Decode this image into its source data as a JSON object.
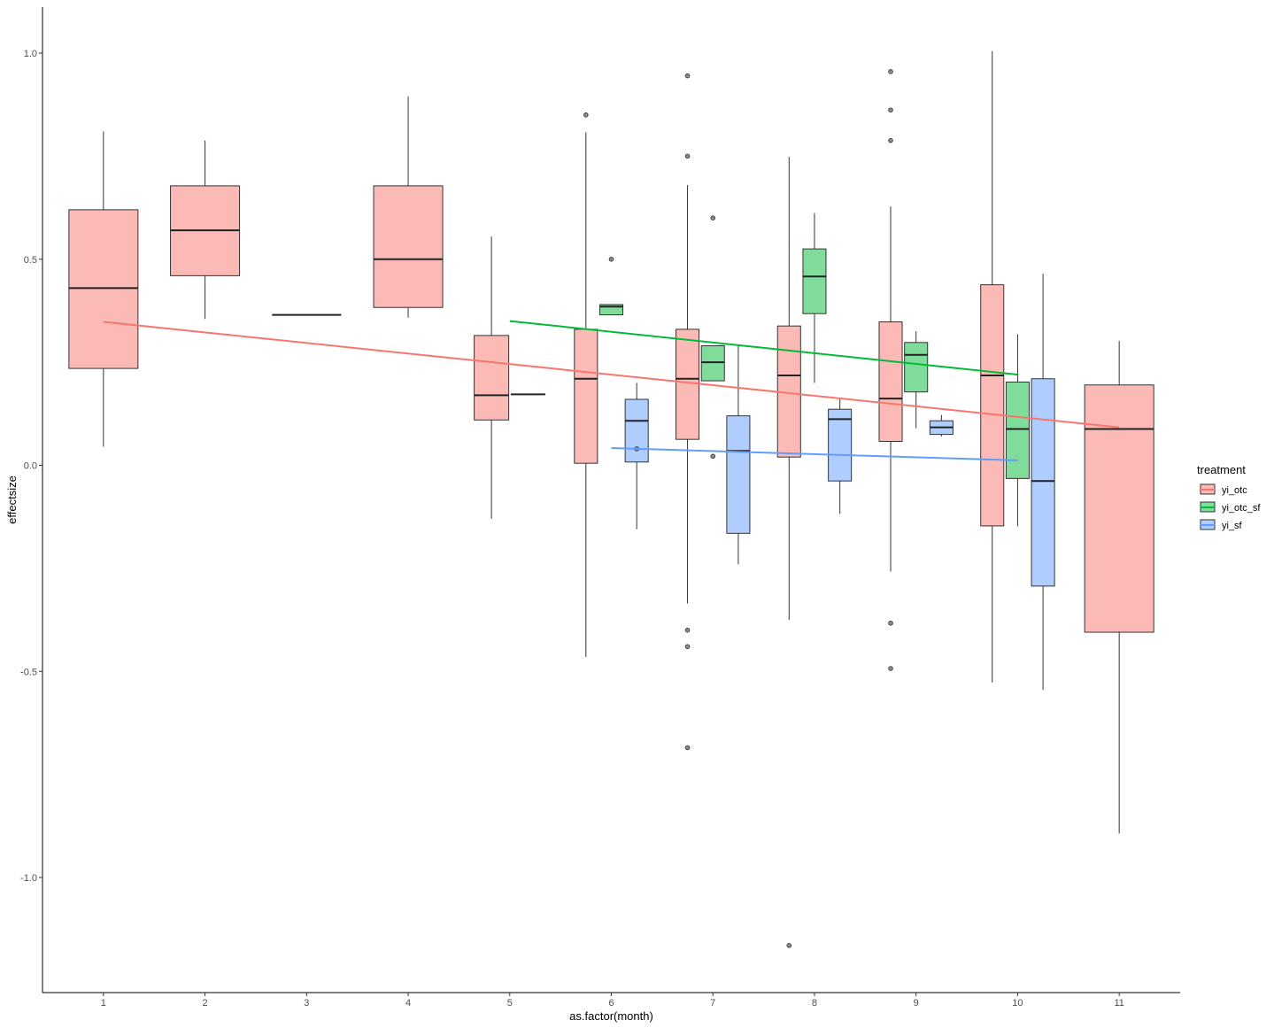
{
  "chart_data": {
    "type": "boxplot",
    "xlabel": "as.factor(month)",
    "ylabel": "effectsize",
    "categories": [
      "1",
      "2",
      "3",
      "4",
      "5",
      "6",
      "7",
      "8",
      "9",
      "10",
      "11"
    ],
    "ylim": [
      -1.2,
      1.1
    ],
    "yticks": [
      {
        "value": 1.0,
        "label": "1.0"
      },
      {
        "value": 0.5,
        "label": "0.5"
      },
      {
        "value": 0.0,
        "label": "0.0"
      },
      {
        "value": -0.5,
        "label": "-0.5"
      },
      {
        "value": -1.0,
        "label": "-1.0"
      }
    ],
    "legend": {
      "title": "treatment",
      "position": "right",
      "entries": [
        {
          "name": "yi_otc",
          "fill": "#f8766d",
          "line": "#f8766d"
        },
        {
          "name": "yi_otc_sf",
          "fill": "#00ba38",
          "line": "#00ba38"
        },
        {
          "name": "yi_sf",
          "fill": "#619cff",
          "line": "#619cff"
        }
      ]
    },
    "boxes": [
      {
        "month": "1",
        "series": "yi_otc",
        "offset": 0,
        "width": 0.68,
        "lower_whisker": 0.045,
        "q1": 0.235,
        "median": 0.43,
        "q3": 0.62,
        "upper_whisker": 0.81,
        "outliers": []
      },
      {
        "month": "2",
        "series": "yi_otc",
        "offset": 0,
        "width": 0.68,
        "lower_whisker": 0.355,
        "q1": 0.46,
        "median": 0.57,
        "q3": 0.678,
        "upper_whisker": 0.788,
        "outliers": []
      },
      {
        "month": "3",
        "series": "yi_otc",
        "offset": 0,
        "width": 0.68,
        "lower_whisker": 0.365,
        "q1": 0.365,
        "median": 0.365,
        "q3": 0.365,
        "upper_whisker": 0.365,
        "outliers": []
      },
      {
        "month": "4",
        "series": "yi_otc",
        "offset": 0,
        "width": 0.68,
        "lower_whisker": 0.358,
        "q1": 0.383,
        "median": 0.5,
        "q3": 0.678,
        "upper_whisker": 0.895,
        "outliers": []
      },
      {
        "month": "5",
        "series": "yi_otc",
        "offset": -0.18,
        "width": 0.34,
        "lower_whisker": -0.13,
        "q1": 0.11,
        "median": 0.17,
        "q3": 0.315,
        "upper_whisker": 0.555,
        "outliers": []
      },
      {
        "month": "5",
        "series": "yi_otc_sf",
        "offset": 0.18,
        "width": 0.34,
        "lower_whisker": 0.172,
        "q1": 0.172,
        "median": 0.172,
        "q3": 0.172,
        "upper_whisker": 0.172,
        "outliers": []
      },
      {
        "month": "6",
        "series": "yi_otc",
        "offset": -0.25,
        "width": 0.227,
        "lower_whisker": -0.465,
        "q1": 0.005,
        "median": 0.21,
        "q3": 0.33,
        "upper_whisker": 0.808,
        "outliers": [
          0.85
        ]
      },
      {
        "month": "6",
        "series": "yi_otc_sf",
        "offset": 0,
        "width": 0.227,
        "lower_whisker": 0.365,
        "q1": 0.365,
        "median": 0.385,
        "q3": 0.39,
        "upper_whisker": 0.39,
        "outliers": [
          0.5
        ]
      },
      {
        "month": "6",
        "series": "yi_sf",
        "offset": 0.25,
        "width": 0.227,
        "lower_whisker": -0.155,
        "q1": 0.008,
        "median": 0.108,
        "q3": 0.16,
        "upper_whisker": 0.2,
        "outliers": [
          0.04
        ]
      },
      {
        "month": "7",
        "series": "yi_otc",
        "offset": -0.25,
        "width": 0.227,
        "lower_whisker": -0.335,
        "q1": 0.063,
        "median": 0.21,
        "q3": 0.33,
        "upper_whisker": 0.68,
        "outliers": [
          0.945,
          0.75,
          -0.4,
          -0.44,
          -0.685
        ]
      },
      {
        "month": "7",
        "series": "yi_otc_sf",
        "offset": 0,
        "width": 0.227,
        "lower_whisker": 0.205,
        "q1": 0.205,
        "median": 0.25,
        "q3": 0.29,
        "upper_whisker": 0.29,
        "outliers": [
          0.6,
          0.022
        ]
      },
      {
        "month": "7",
        "series": "yi_sf",
        "offset": 0.25,
        "width": 0.227,
        "lower_whisker": -0.24,
        "q1": -0.165,
        "median": 0.035,
        "q3": 0.12,
        "upper_whisker": 0.29,
        "outliers": []
      },
      {
        "month": "8",
        "series": "yi_otc",
        "offset": -0.25,
        "width": 0.227,
        "lower_whisker": -0.375,
        "q1": 0.02,
        "median": 0.218,
        "q3": 0.338,
        "upper_whisker": 0.748,
        "outliers": [
          -1.165
        ]
      },
      {
        "month": "8",
        "series": "yi_otc_sf",
        "offset": 0,
        "width": 0.227,
        "lower_whisker": 0.2,
        "q1": 0.368,
        "median": 0.458,
        "q3": 0.525,
        "upper_whisker": 0.612,
        "outliers": []
      },
      {
        "month": "8",
        "series": "yi_sf",
        "offset": 0.25,
        "width": 0.227,
        "lower_whisker": -0.118,
        "q1": -0.038,
        "median": 0.112,
        "q3": 0.136,
        "upper_whisker": 0.16,
        "outliers": []
      },
      {
        "month": "9",
        "series": "yi_otc",
        "offset": -0.25,
        "width": 0.227,
        "lower_whisker": -0.258,
        "q1": 0.058,
        "median": 0.162,
        "q3": 0.348,
        "upper_whisker": 0.628,
        "outliers": [
          0.955,
          0.862,
          0.788,
          -0.383,
          -0.493
        ]
      },
      {
        "month": "9",
        "series": "yi_otc_sf",
        "offset": 0,
        "width": 0.227,
        "lower_whisker": 0.09,
        "q1": 0.178,
        "median": 0.268,
        "q3": 0.298,
        "upper_whisker": 0.325,
        "outliers": []
      },
      {
        "month": "9",
        "series": "yi_sf",
        "offset": 0.25,
        "width": 0.227,
        "lower_whisker": 0.07,
        "q1": 0.075,
        "median": 0.092,
        "q3": 0.108,
        "upper_whisker": 0.122,
        "outliers": []
      },
      {
        "month": "10",
        "series": "yi_otc",
        "offset": -0.25,
        "width": 0.227,
        "lower_whisker": -0.527,
        "q1": -0.147,
        "median": 0.218,
        "q3": 0.438,
        "upper_whisker": 1.005,
        "outliers": []
      },
      {
        "month": "10",
        "series": "yi_otc_sf",
        "offset": 0,
        "width": 0.227,
        "lower_whisker": -0.148,
        "q1": -0.032,
        "median": 0.088,
        "q3": 0.202,
        "upper_whisker": 0.318,
        "outliers": []
      },
      {
        "month": "10",
        "series": "yi_sf",
        "offset": 0.25,
        "width": 0.227,
        "lower_whisker": -0.545,
        "q1": -0.293,
        "median": -0.038,
        "q3": 0.21,
        "upper_whisker": 0.465,
        "outliers": []
      },
      {
        "month": "11",
        "series": "yi_otc",
        "offset": 0,
        "width": 0.68,
        "lower_whisker": -0.893,
        "q1": -0.405,
        "median": 0.088,
        "q3": 0.195,
        "upper_whisker": 0.302,
        "outliers": []
      }
    ],
    "trend_lines": [
      {
        "series": "yi_otc",
        "points": [
          [
            1,
            0.348
          ],
          [
            11,
            0.092
          ]
        ]
      },
      {
        "series": "yi_otc_sf",
        "points": [
          [
            5,
            0.35
          ],
          [
            10,
            0.22
          ]
        ]
      },
      {
        "series": "yi_sf",
        "points": [
          [
            6,
            0.042
          ],
          [
            10,
            0.012
          ]
        ]
      }
    ]
  }
}
